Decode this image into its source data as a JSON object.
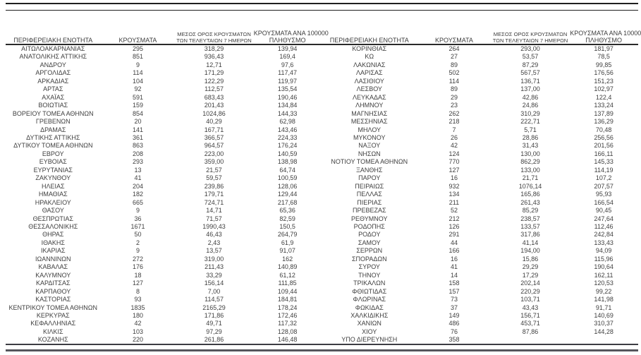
{
  "document": {
    "type": "regional-covid-case-table",
    "colors": {
      "background": "#ffffff",
      "text": "#3f3f3f",
      "top_rule": "#1f1f1f",
      "header_rule": "#2a2a2a",
      "bottom_rule": "#3c3c43",
      "footer_rule": "#55555c"
    }
  },
  "headers": {
    "region": "ΠΕΡΙΦΕΡΕΙΑΚΗ ΕΝΟΤΗΤΑ",
    "cases": "ΚΡΟΥΣΜΑΤΑ",
    "avg7_line1": "ΜΕΣΟΣ ΟΡΟΣ ΚΡΟΥΣΜΑΤΩΝ",
    "avg7_line2": "ΤΩΝ ΤΕΛΕΥΤΑΙΩΝ 7 ΗΜΕΡΩΝ",
    "per100k_line1": "ΚΡΟΥΣΜΑΤΑ ΑΝΑ 100000",
    "per100k_line2": "ΠΛΗΘΥΣΜΟ"
  },
  "left_rows": [
    {
      "region": "ΑΙΤΩΛΟΑΚΑΡΝΑΝΙΑΣ",
      "cases": "295",
      "avg7": "318,29",
      "per100k": "139,94"
    },
    {
      "region": "ΑΝΑΤΟΛΙΚΗΣ ΑΤΤΙΚΗΣ",
      "cases": "851",
      "avg7": "936,43",
      "per100k": "169,4"
    },
    {
      "region": "ΑΝΔΡΟΥ",
      "cases": "9",
      "avg7": "12,71",
      "per100k": "97,6"
    },
    {
      "region": "ΑΡΓΟΛΙΔΑΣ",
      "cases": "114",
      "avg7": "171,29",
      "per100k": "117,47"
    },
    {
      "region": "ΑΡΚΑΔΙΑΣ",
      "cases": "104",
      "avg7": "122,29",
      "per100k": "119,97"
    },
    {
      "region": "ΑΡΤΑΣ",
      "cases": "92",
      "avg7": "112,57",
      "per100k": "135,54"
    },
    {
      "region": "ΑΧΑΪΑΣ",
      "cases": "591",
      "avg7": "683,43",
      "per100k": "190,46"
    },
    {
      "region": "ΒΟΙΩΤΙΑΣ",
      "cases": "159",
      "avg7": "201,43",
      "per100k": "134,84"
    },
    {
      "region": "ΒΟΡΕΙΟΥ ΤΟΜΕΑ ΑΘΗΝΩΝ",
      "cases": "854",
      "avg7": "1024,86",
      "per100k": "144,33"
    },
    {
      "region": "ΓΡΕΒΕΝΩΝ",
      "cases": "20",
      "avg7": "40,29",
      "per100k": "62,98"
    },
    {
      "region": "ΔΡΑΜΑΣ",
      "cases": "141",
      "avg7": "167,71",
      "per100k": "143,46"
    },
    {
      "region": "ΔΥΤΙΚΗΣ ΑΤΤΙΚΗΣ",
      "cases": "361",
      "avg7": "366,57",
      "per100k": "224,33"
    },
    {
      "region": "ΔΥΤΙΚΟΥ ΤΟΜΕΑ ΑΘΗΝΩΝ",
      "cases": "863",
      "avg7": "964,57",
      "per100k": "176,24"
    },
    {
      "region": "ΕΒΡΟΥ",
      "cases": "208",
      "avg7": "223,00",
      "per100k": "140,59"
    },
    {
      "region": "ΕΥΒΟΙΑΣ",
      "cases": "293",
      "avg7": "359,00",
      "per100k": "138,98"
    },
    {
      "region": "ΕΥΡΥΤΑΝΙΑΣ",
      "cases": "13",
      "avg7": "21,57",
      "per100k": "64,74"
    },
    {
      "region": "ΖΑΚΥΝΘΟΥ",
      "cases": "41",
      "avg7": "59,57",
      "per100k": "100,59"
    },
    {
      "region": "ΗΛΕΙΑΣ",
      "cases": "204",
      "avg7": "239,86",
      "per100k": "128,06"
    },
    {
      "region": "ΗΜΑΘΙΑΣ",
      "cases": "182",
      "avg7": "179,71",
      "per100k": "129,44"
    },
    {
      "region": "ΗΡΑΚΛΕΙΟΥ",
      "cases": "665",
      "avg7": "724,71",
      "per100k": "217,68"
    },
    {
      "region": "ΘΑΣΟΥ",
      "cases": "9",
      "avg7": "14,71",
      "per100k": "65,36"
    },
    {
      "region": "ΘΕΣΠΡΩΤΙΑΣ",
      "cases": "36",
      "avg7": "71,57",
      "per100k": "82,59"
    },
    {
      "region": "ΘΕΣΣΑΛΟΝΙΚΗΣ",
      "cases": "1671",
      "avg7": "1990,43",
      "per100k": "150,5"
    },
    {
      "region": "ΘΗΡΑΣ",
      "cases": "50",
      "avg7": "46,43",
      "per100k": "264,79"
    },
    {
      "region": "ΙΘΑΚΗΣ",
      "cases": "2",
      "avg7": "2,43",
      "per100k": "61,9"
    },
    {
      "region": "ΙΚΑΡΙΑΣ",
      "cases": "9",
      "avg7": "13,57",
      "per100k": "91,07"
    },
    {
      "region": "ΙΩΑΝΝΙΝΩΝ",
      "cases": "272",
      "avg7": "319,00",
      "per100k": "162"
    },
    {
      "region": "ΚΑΒΑΛΑΣ",
      "cases": "176",
      "avg7": "211,43",
      "per100k": "140,89"
    },
    {
      "region": "ΚΑΛΥΜΝΟΥ",
      "cases": "18",
      "avg7": "33,29",
      "per100k": "61,12"
    },
    {
      "region": "ΚΑΡΔΙΤΣΑΣ",
      "cases": "127",
      "avg7": "156,14",
      "per100k": "111,85"
    },
    {
      "region": "ΚΑΡΠΑΘΟΥ",
      "cases": "8",
      "avg7": "7,00",
      "per100k": "109,44"
    },
    {
      "region": "ΚΑΣΤΟΡΙΑΣ",
      "cases": "93",
      "avg7": "114,57",
      "per100k": "184,81"
    },
    {
      "region": "ΚΕΝΤΡΙΚΟΥ ΤΟΜΕΑ ΑΘΗΝΩΝ",
      "cases": "1835",
      "avg7": "2165,29",
      "per100k": "178,24"
    },
    {
      "region": "ΚΕΡΚΥΡΑΣ",
      "cases": "180",
      "avg7": "171,86",
      "per100k": "172,46"
    },
    {
      "region": "ΚΕΦΑΛΛΗΝΙΑΣ",
      "cases": "42",
      "avg7": "49,71",
      "per100k": "117,32"
    },
    {
      "region": "ΚΙΛΚΙΣ",
      "cases": "103",
      "avg7": "97,29",
      "per100k": "128,08"
    },
    {
      "region": "ΚΟΖΑΝΗΣ",
      "cases": "220",
      "avg7": "261,86",
      "per100k": "146,48"
    }
  ],
  "right_rows": [
    {
      "region": "ΚΟΡΙΝΘΙΑΣ",
      "cases": "264",
      "avg7": "293,00",
      "per100k": "181,97"
    },
    {
      "region": "ΚΩ",
      "cases": "27",
      "avg7": "53,57",
      "per100k": "78,5"
    },
    {
      "region": "ΛΑΚΩΝΙΑΣ",
      "cases": "89",
      "avg7": "87,29",
      "per100k": "99,85"
    },
    {
      "region": "ΛΑΡΙΣΑΣ",
      "cases": "502",
      "avg7": "567,57",
      "per100k": "176,56"
    },
    {
      "region": "ΛΑΣΙΘΙΟΥ",
      "cases": "114",
      "avg7": "136,71",
      "per100k": "151,23"
    },
    {
      "region": "ΛΕΣΒΟΥ",
      "cases": "89",
      "avg7": "137,00",
      "per100k": "102,97"
    },
    {
      "region": "ΛΕΥΚΑΔΑΣ",
      "cases": "29",
      "avg7": "42,86",
      "per100k": "122,4"
    },
    {
      "region": "ΛΗΜΝΟΥ",
      "cases": "23",
      "avg7": "24,86",
      "per100k": "133,24"
    },
    {
      "region": "ΜΑΓΝΗΣΙΑΣ",
      "cases": "262",
      "avg7": "310,29",
      "per100k": "137,89"
    },
    {
      "region": "ΜΕΣΣΗΝΙΑΣ",
      "cases": "218",
      "avg7": "222,71",
      "per100k": "136,29"
    },
    {
      "region": "ΜΗΛΟΥ",
      "cases": "7",
      "avg7": "5,71",
      "per100k": "70,48"
    },
    {
      "region": "ΜΥΚΟΝΟΥ",
      "cases": "26",
      "avg7": "28,86",
      "per100k": "256,56"
    },
    {
      "region": "ΝΑΞΟΥ",
      "cases": "42",
      "avg7": "31,43",
      "per100k": "201,56"
    },
    {
      "region": "ΝΗΣΩΝ",
      "cases": "124",
      "avg7": "130,00",
      "per100k": "166,11"
    },
    {
      "region": "ΝΟΤΙΟΥ ΤΟΜΕΑ ΑΘΗΝΩΝ",
      "cases": "770",
      "avg7": "862,29",
      "per100k": "145,33"
    },
    {
      "region": "ΞΑΝΘΗΣ",
      "cases": "127",
      "avg7": "133,00",
      "per100k": "114,19"
    },
    {
      "region": "ΠΑΡΟΥ",
      "cases": "16",
      "avg7": "21,71",
      "per100k": "107,2"
    },
    {
      "region": "ΠΕΙΡΑΙΩΣ",
      "cases": "932",
      "avg7": "1076,14",
      "per100k": "207,57"
    },
    {
      "region": "ΠΕΛΛΑΣ",
      "cases": "134",
      "avg7": "165,86",
      "per100k": "95,93"
    },
    {
      "region": "ΠΙΕΡΙΑΣ",
      "cases": "211",
      "avg7": "261,43",
      "per100k": "166,54"
    },
    {
      "region": "ΠΡΕΒΕΖΑΣ",
      "cases": "52",
      "avg7": "85,29",
      "per100k": "90,45"
    },
    {
      "region": "ΡΕΘΥΜΝΟΥ",
      "cases": "212",
      "avg7": "238,57",
      "per100k": "247,64"
    },
    {
      "region": "ΡΟΔΟΠΗΣ",
      "cases": "126",
      "avg7": "133,57",
      "per100k": "112,46"
    },
    {
      "region": "ΡΟΔΟΥ",
      "cases": "291",
      "avg7": "317,86",
      "per100k": "242,84"
    },
    {
      "region": "ΣΑΜΟΥ",
      "cases": "44",
      "avg7": "41,14",
      "per100k": "133,43"
    },
    {
      "region": "ΣΕΡΡΩΝ",
      "cases": "166",
      "avg7": "194,00",
      "per100k": "94,09"
    },
    {
      "region": "ΣΠΟΡΑΔΩΝ",
      "cases": "16",
      "avg7": "15,86",
      "per100k": "115,96"
    },
    {
      "region": "ΣΥΡΟΥ",
      "cases": "41",
      "avg7": "29,29",
      "per100k": "190,64"
    },
    {
      "region": "ΤΗΝΟΥ",
      "cases": "14",
      "avg7": "17,29",
      "per100k": "162,11"
    },
    {
      "region": "ΤΡΙΚΑΛΩΝ",
      "cases": "158",
      "avg7": "202,14",
      "per100k": "120,53"
    },
    {
      "region": "ΦΘΙΩΤΙΔΑΣ",
      "cases": "157",
      "avg7": "220,29",
      "per100k": "99,22"
    },
    {
      "region": "ΦΛΩΡΙΝΑΣ",
      "cases": "73",
      "avg7": "103,71",
      "per100k": "141,98"
    },
    {
      "region": "ΦΩΚΙΔΑΣ",
      "cases": "37",
      "avg7": "43,43",
      "per100k": "91,71"
    },
    {
      "region": "ΧΑΛΚΙΔΙΚΗΣ",
      "cases": "149",
      "avg7": "156,71",
      "per100k": "140,69"
    },
    {
      "region": "ΧΑΝΙΩΝ",
      "cases": "486",
      "avg7": "453,71",
      "per100k": "310,37"
    },
    {
      "region": "ΧΙΟΥ",
      "cases": "76",
      "avg7": "87,86",
      "per100k": "144,28"
    },
    {
      "region": "ΥΠΟ ΔΙΕΡΕΥΝΗΣΗ",
      "cases": "358",
      "avg7": "",
      "per100k": ""
    }
  ]
}
